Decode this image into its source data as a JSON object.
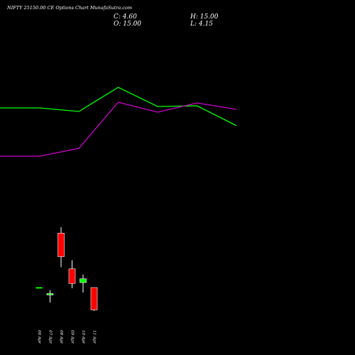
{
  "header": {
    "title": "NIFTY 25150.00  CE Options  Chart MunafaSutra.com",
    "close_label": "C: 4.60",
    "open_label": "O: 15.00",
    "high_label": "H: 15.00",
    "low_label": "L: 4.15"
  },
  "chart_data": {
    "type": "candlestick",
    "title": "NIFTY 25150.00  CE Options  Chart MunafaSutra.com",
    "categories": [
      "06 Apr",
      "07 Apr",
      "08 Apr",
      "09 Apr",
      "10 Apr",
      "11 Apr"
    ],
    "candles": [
      {
        "date": "06 Apr",
        "open": 15.2,
        "high": 15.2,
        "low": 15.2,
        "close": 15.2,
        "color": "#ffffff"
      },
      {
        "date": "07 Apr",
        "open": 11.9,
        "high": 13.8,
        "low": 8.0,
        "close": 12.2,
        "color": "#00ff00"
      },
      {
        "date": "08 Apr",
        "open": 40.4,
        "high": 43.2,
        "low": 24.5,
        "close": 29.4,
        "color": "#ff0000"
      },
      {
        "date": "09 Apr",
        "open": 23.7,
        "high": 27.7,
        "low": 14.7,
        "close": 16.9,
        "color": "#ff0000"
      },
      {
        "date": "10 Apr",
        "open": 17.3,
        "high": 21.1,
        "low": 12.7,
        "close": 19.1,
        "color": "#00ff00"
      },
      {
        "date": "11 Apr",
        "open": 15.0,
        "high": 15.0,
        "low": 4.15,
        "close": 4.6,
        "color": "#ff0000"
      }
    ],
    "lines": [
      {
        "color": "#00ff00",
        "points": [
          [
            0,
            83
          ],
          [
            1,
            83
          ],
          [
            2,
            78
          ],
          [
            3,
            112
          ],
          [
            4,
            85
          ],
          [
            5,
            86
          ],
          [
            6,
            58
          ]
        ]
      },
      {
        "color": "#cc00cc",
        "points": [
          [
            0,
            15
          ],
          [
            1,
            15
          ],
          [
            2,
            26
          ],
          [
            3,
            91
          ],
          [
            4,
            77
          ],
          [
            5,
            90
          ],
          [
            6,
            81
          ]
        ]
      }
    ],
    "colors": {
      "background": "#000000",
      "bullish": "#00ff00",
      "bearish": "#ff0000",
      "text": "#ffffff"
    },
    "grid": false
  }
}
